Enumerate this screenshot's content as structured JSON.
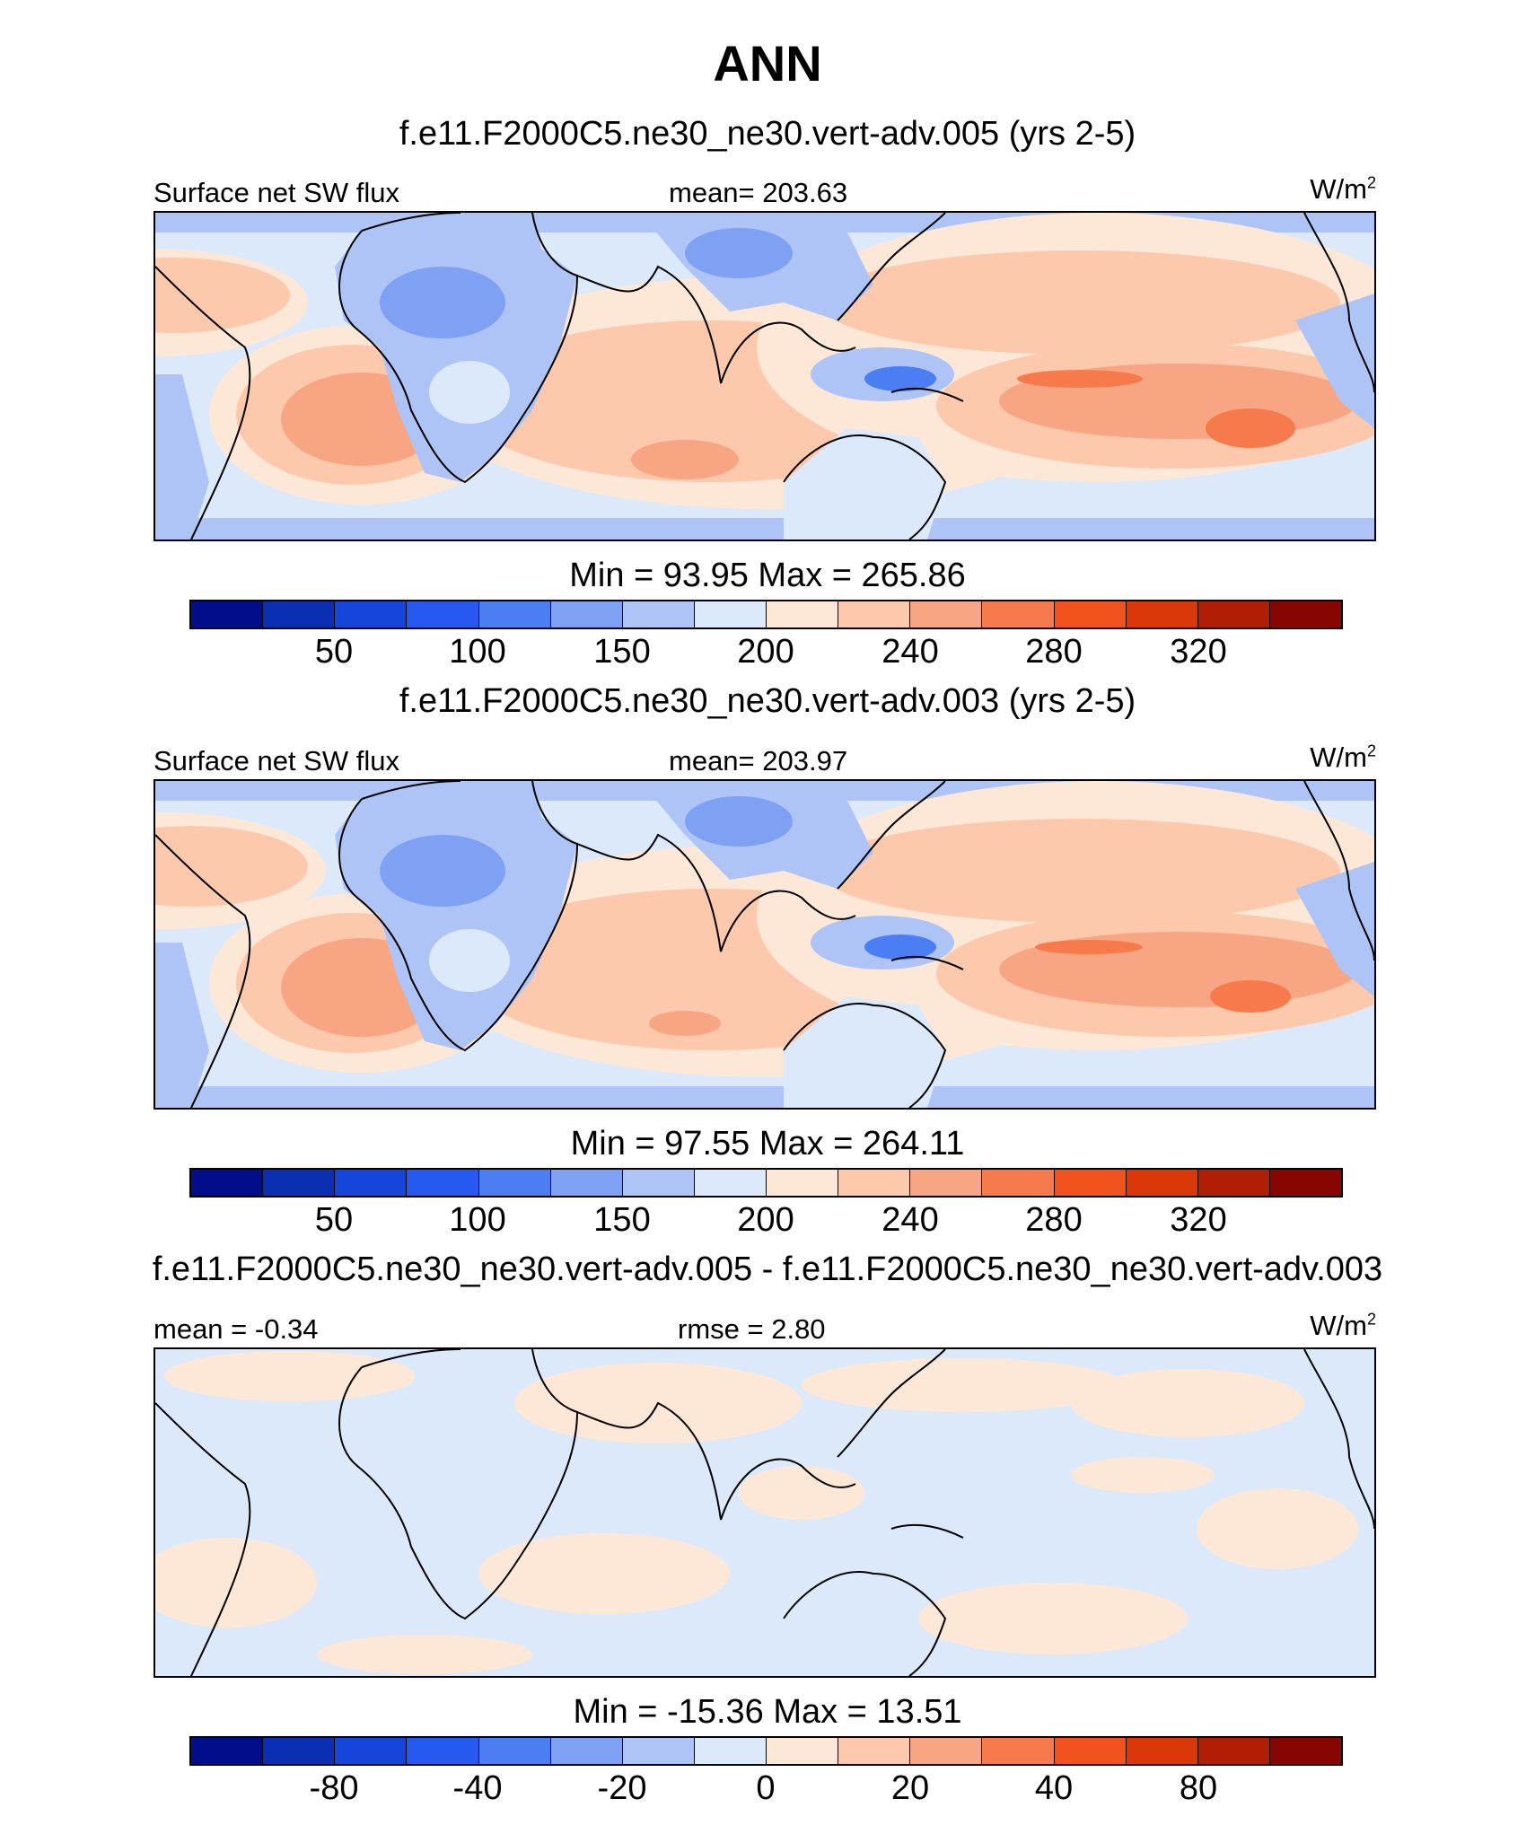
{
  "main_title": "ANN",
  "colors": [
    "#000e8c",
    "#0a2fb3",
    "#1546d9",
    "#2659f0",
    "#4a7ef2",
    "#7ea1f4",
    "#aec4f7",
    "#dce9fb",
    "#fde8d8",
    "#fcc9ad",
    "#f8a583",
    "#f77a4c",
    "#f2531e",
    "#db3709",
    "#b01f05",
    "#870602"
  ],
  "panels": [
    {
      "case_title": "f.e11.F2000C5.ne30_ne30.vert-adv.005 (yrs 2-5)",
      "left_label": "Surface net SW flux",
      "center_label": "mean= 203.63",
      "unit_base": "W/m",
      "unit_sup": "2",
      "minmax": "Min =  93.95 Max = 265.86",
      "ticks": [
        "50",
        "100",
        "150",
        "200",
        "240",
        "280",
        "320"
      ]
    },
    {
      "case_title": "f.e11.F2000C5.ne30_ne30.vert-adv.003 (yrs 2-5)",
      "left_label": "Surface net SW flux",
      "center_label": "mean= 203.97",
      "unit_base": "W/m",
      "unit_sup": "2",
      "minmax": "Min =  97.55 Max = 264.11",
      "ticks": [
        "50",
        "100",
        "150",
        "200",
        "240",
        "280",
        "320"
      ]
    },
    {
      "case_title": "f.e11.F2000C5.ne30_ne30.vert-adv.005 - f.e11.F2000C5.ne30_ne30.vert-adv.003",
      "left_label": "mean =  -0.34",
      "center_label": "rmse =   2.80",
      "unit_base": "W/m",
      "unit_sup": "2",
      "minmax": "Min = -15.36 Max =  13.51",
      "ticks": [
        "-80",
        "-40",
        "-20",
        "0",
        "20",
        "40",
        "80"
      ]
    }
  ],
  "chart_data": [
    {
      "type": "heatmap",
      "title": "f.e11.F2000C5.ne30_ne30.vert-adv.005 (yrs 2-5)",
      "variable": "Surface net SW flux",
      "units": "W/m2",
      "mean": 203.63,
      "min": 93.95,
      "max": 265.86,
      "colorbar_levels": [
        25,
        50,
        75,
        100,
        125,
        150,
        175,
        200,
        220,
        240,
        260,
        280,
        300,
        320,
        340
      ]
    },
    {
      "type": "heatmap",
      "title": "f.e11.F2000C5.ne30_ne30.vert-adv.003 (yrs 2-5)",
      "variable": "Surface net SW flux",
      "units": "W/m2",
      "mean": 203.97,
      "min": 97.55,
      "max": 264.11,
      "colorbar_levels": [
        25,
        50,
        75,
        100,
        125,
        150,
        175,
        200,
        220,
        240,
        260,
        280,
        300,
        320,
        340
      ]
    },
    {
      "type": "heatmap",
      "title": "f.e11.F2000C5.ne30_ne30.vert-adv.005 - f.e11.F2000C5.ne30_ne30.vert-adv.003",
      "units": "W/m2",
      "mean": -0.34,
      "rmse": 2.8,
      "min": -15.36,
      "max": 13.51,
      "colorbar_levels": [
        -100,
        -80,
        -60,
        -40,
        -30,
        -20,
        -10,
        0,
        10,
        20,
        30,
        40,
        60,
        80,
        100
      ]
    }
  ]
}
